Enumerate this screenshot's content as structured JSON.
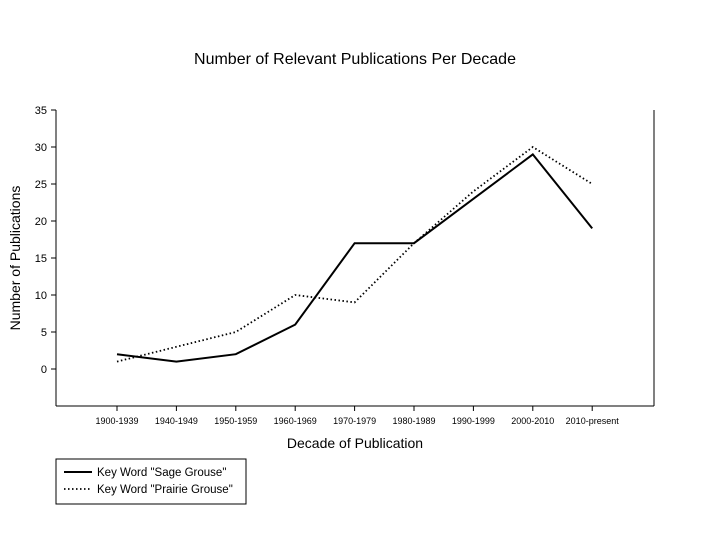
{
  "chart_data": {
    "type": "line",
    "title": "Number of Relevant Publications Per Decade",
    "xlabel": "Decade of Publication",
    "ylabel": "Number of Publications",
    "categories": [
      "1900-1939",
      "1940-1949",
      "1950-1959",
      "1960-1969",
      "1970-1979",
      "1980-1989",
      "1990-1999",
      "2000-2010",
      "2010-present"
    ],
    "ylim": [
      -5,
      35
    ],
    "yticks": [
      "0",
      "5",
      "10",
      "15",
      "20",
      "25",
      "30",
      "35"
    ],
    "grid": false,
    "legend_position": "bottom-left",
    "series": [
      {
        "name": "Key Word \"Sage Grouse\"",
        "style": "solid",
        "color": "#000000",
        "values": [
          2,
          1,
          2,
          6,
          17,
          17,
          23,
          29,
          19
        ]
      },
      {
        "name": "Key Word \"Prairie Grouse\"",
        "style": "dotted",
        "color": "#000000",
        "values": [
          1,
          3,
          5,
          10,
          9,
          17,
          24,
          30,
          25
        ]
      }
    ]
  }
}
